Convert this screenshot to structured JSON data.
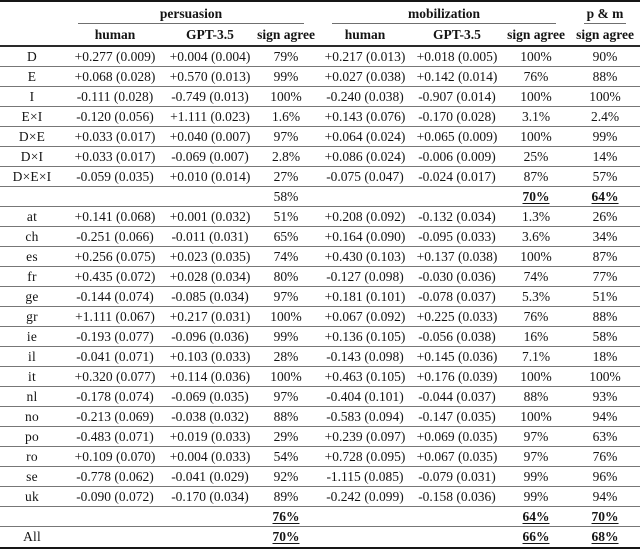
{
  "table": {
    "groups": [
      {
        "label": "persuasion",
        "span": 3
      },
      {
        "label": "mobilization",
        "span": 3
      },
      {
        "label": "p & m",
        "span": 1
      }
    ],
    "column_headers": [
      "human",
      "GPT-3.5",
      "sign agree",
      "human",
      "GPT-3.5",
      "sign agree",
      "sign agree"
    ],
    "rows": [
      {
        "label": "D",
        "cells": [
          "+0.277 (0.009)",
          "+0.004 (0.004)",
          "79%",
          "+0.217 (0.013)",
          "+0.018 (0.005)",
          "100%",
          "90%"
        ],
        "emph": []
      },
      {
        "label": "E",
        "cells": [
          "+0.068 (0.028)",
          "+0.570 (0.013)",
          "99%",
          "+0.027 (0.038)",
          "+0.142 (0.014)",
          "76%",
          "88%"
        ],
        "emph": []
      },
      {
        "label": "I",
        "cells": [
          "-0.111 (0.028)",
          "-0.749 (0.013)",
          "100%",
          "-0.240 (0.038)",
          "-0.907 (0.014)",
          "100%",
          "100%"
        ],
        "emph": []
      },
      {
        "label": "E×I",
        "cells": [
          "-0.120 (0.056)",
          "+1.111 (0.023)",
          "1.6%",
          "+0.143 (0.076)",
          "-0.170 (0.028)",
          "3.1%",
          "2.4%"
        ],
        "emph": []
      },
      {
        "label": "D×E",
        "cells": [
          "+0.033 (0.017)",
          "+0.040 (0.007)",
          "97%",
          "+0.064 (0.024)",
          "+0.065 (0.009)",
          "100%",
          "99%"
        ],
        "emph": []
      },
      {
        "label": "D×I",
        "cells": [
          "+0.033 (0.017)",
          "-0.069 (0.007)",
          "2.8%",
          "+0.086 (0.024)",
          "-0.006 (0.009)",
          "25%",
          "14%"
        ],
        "emph": []
      },
      {
        "label": "D×E×I",
        "cells": [
          "-0.059 (0.035)",
          "+0.010 (0.014)",
          "27%",
          "-0.075 (0.047)",
          "-0.024 (0.017)",
          "87%",
          "57%"
        ],
        "emph": []
      },
      {
        "label": "",
        "cells": [
          "",
          "",
          "58%",
          "",
          "",
          "70%",
          "64%"
        ],
        "emph": [
          5,
          6
        ]
      },
      {
        "label": "at",
        "cells": [
          "+0.141 (0.068)",
          "+0.001 (0.032)",
          "51%",
          "+0.208 (0.092)",
          "-0.132 (0.034)",
          "1.3%",
          "26%"
        ],
        "emph": []
      },
      {
        "label": "ch",
        "cells": [
          "-0.251 (0.066)",
          "-0.011 (0.031)",
          "65%",
          "+0.164 (0.090)",
          "-0.095 (0.033)",
          "3.6%",
          "34%"
        ],
        "emph": []
      },
      {
        "label": "es",
        "cells": [
          "+0.256 (0.075)",
          "+0.023 (0.035)",
          "74%",
          "+0.430 (0.103)",
          "+0.137 (0.038)",
          "100%",
          "87%"
        ],
        "emph": []
      },
      {
        "label": "fr",
        "cells": [
          "+0.435 (0.072)",
          "+0.028 (0.034)",
          "80%",
          "-0.127 (0.098)",
          "-0.030 (0.036)",
          "74%",
          "77%"
        ],
        "emph": []
      },
      {
        "label": "ge",
        "cells": [
          "-0.144 (0.074)",
          "-0.085 (0.034)",
          "97%",
          "+0.181 (0.101)",
          "-0.078 (0.037)",
          "5.3%",
          "51%"
        ],
        "emph": []
      },
      {
        "label": "gr",
        "cells": [
          "+1.111 (0.067)",
          "+0.217 (0.031)",
          "100%",
          "+0.067 (0.092)",
          "+0.225 (0.033)",
          "76%",
          "88%"
        ],
        "emph": []
      },
      {
        "label": "ie",
        "cells": [
          "-0.193 (0.077)",
          "-0.096 (0.036)",
          "99%",
          "+0.136 (0.105)",
          "-0.056 (0.038)",
          "16%",
          "58%"
        ],
        "emph": []
      },
      {
        "label": "il",
        "cells": [
          "-0.041 (0.071)",
          "+0.103 (0.033)",
          "28%",
          "-0.143 (0.098)",
          "+0.145 (0.036)",
          "7.1%",
          "18%"
        ],
        "emph": []
      },
      {
        "label": "it",
        "cells": [
          "+0.320 (0.077)",
          "+0.114 (0.036)",
          "100%",
          "+0.463 (0.105)",
          "+0.176 (0.039)",
          "100%",
          "100%"
        ],
        "emph": []
      },
      {
        "label": "nl",
        "cells": [
          "-0.178 (0.074)",
          "-0.069 (0.035)",
          "97%",
          "-0.404 (0.101)",
          "-0.044 (0.037)",
          "88%",
          "93%"
        ],
        "emph": []
      },
      {
        "label": "no",
        "cells": [
          "-0.213 (0.069)",
          "-0.038 (0.032)",
          "88%",
          "-0.583 (0.094)",
          "-0.147 (0.035)",
          "100%",
          "94%"
        ],
        "emph": []
      },
      {
        "label": "po",
        "cells": [
          "-0.483 (0.071)",
          "+0.019 (0.033)",
          "29%",
          "+0.239 (0.097)",
          "+0.069 (0.035)",
          "97%",
          "63%"
        ],
        "emph": []
      },
      {
        "label": "ro",
        "cells": [
          "+0.109 (0.070)",
          "+0.004 (0.033)",
          "54%",
          "+0.728 (0.095)",
          "+0.067 (0.035)",
          "97%",
          "76%"
        ],
        "emph": []
      },
      {
        "label": "se",
        "cells": [
          "-0.778 (0.062)",
          "-0.041 (0.029)",
          "92%",
          "-1.115 (0.085)",
          "-0.079 (0.031)",
          "99%",
          "96%"
        ],
        "emph": []
      },
      {
        "label": "uk",
        "cells": [
          "-0.090 (0.072)",
          "-0.170 (0.034)",
          "89%",
          "-0.242 (0.099)",
          "-0.158 (0.036)",
          "99%",
          "94%"
        ],
        "emph": []
      },
      {
        "label": "",
        "cells": [
          "",
          "",
          "76%",
          "",
          "",
          "64%",
          "70%"
        ],
        "emph": [
          2,
          5,
          6
        ]
      },
      {
        "label": "All",
        "cells": [
          "",
          "",
          "70%",
          "",
          "",
          "66%",
          "68%"
        ],
        "emph": [
          2,
          5,
          6
        ]
      }
    ]
  }
}
